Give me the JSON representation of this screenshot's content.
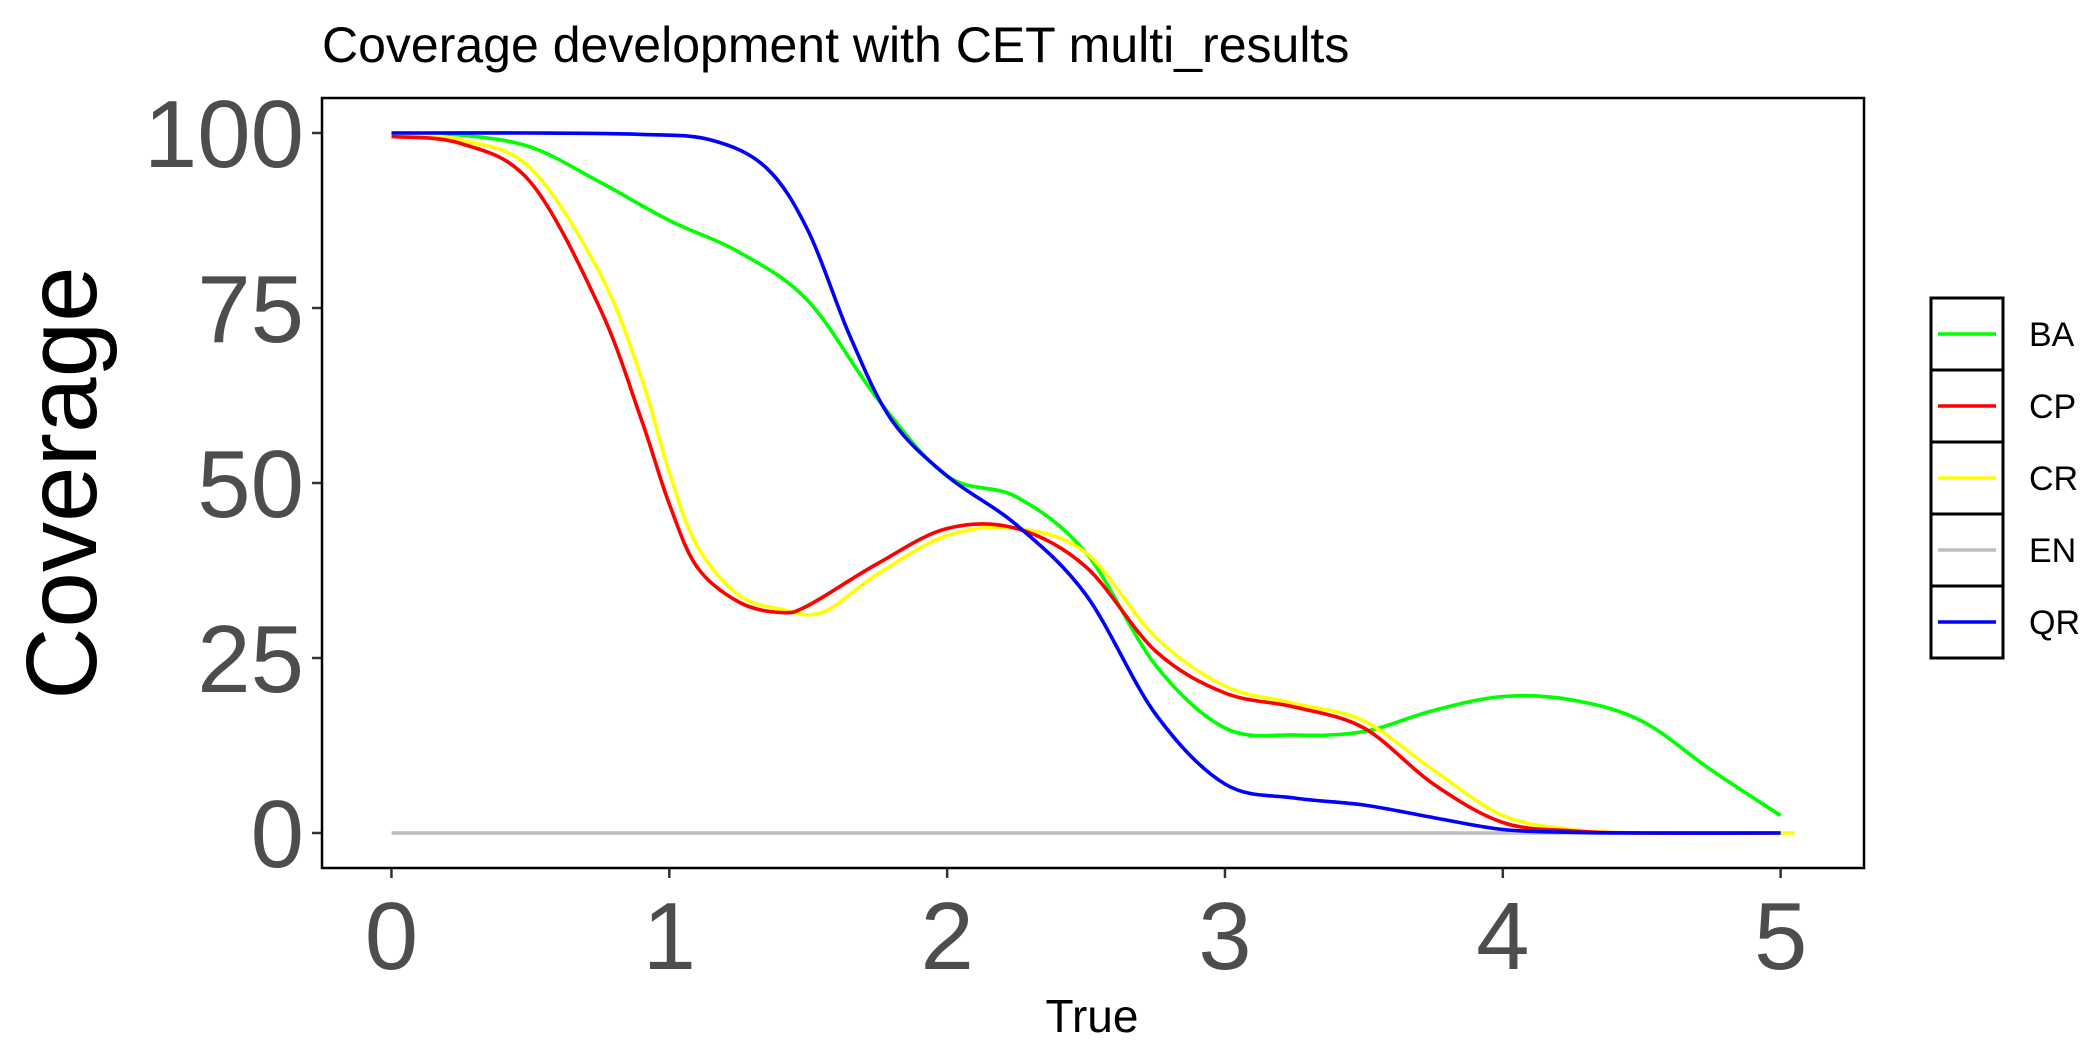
{
  "chart_data": {
    "type": "line",
    "title": "Coverage development with CET multi_results",
    "xlabel": "True",
    "ylabel": "Coverage",
    "xlim": [
      -0.25,
      5.3
    ],
    "ylim": [
      -5,
      105
    ],
    "x_ticks": [
      0,
      1,
      2,
      3,
      4,
      5
    ],
    "x_tick_labels": [
      "0",
      "1",
      "2",
      "3",
      "4",
      "5"
    ],
    "y_ticks": [
      0,
      25,
      50,
      75,
      100
    ],
    "y_tick_labels": [
      "0",
      "25",
      "50",
      "75",
      "100"
    ],
    "grid": false,
    "legend_position": "right",
    "series": [
      {
        "name": "BA",
        "color": "#00ff00",
        "x": [
          0,
          0.25,
          0.5,
          0.75,
          1.0,
          1.25,
          1.5,
          1.75,
          2.0,
          2.25,
          2.5,
          2.75,
          3.0,
          3.25,
          3.5,
          3.75,
          4.0,
          4.25,
          4.5,
          4.75,
          5.0
        ],
        "y": [
          100,
          99.7,
          98,
          93,
          87.5,
          83,
          76,
          62,
          51,
          48,
          40,
          24,
          15,
          14,
          14.5,
          17.5,
          19.5,
          19,
          16,
          9,
          2.5
        ]
      },
      {
        "name": "CP",
        "color": "#ff0000",
        "x": [
          0,
          0.25,
          0.5,
          0.75,
          0.9,
          1.0,
          1.1,
          1.25,
          1.4,
          1.5,
          1.75,
          2.0,
          2.25,
          2.5,
          2.75,
          3.0,
          3.25,
          3.5,
          3.75,
          4.0,
          4.25,
          4.5,
          5.0
        ],
        "y": [
          99.5,
          98.5,
          93,
          75,
          59,
          47,
          38,
          33,
          31.5,
          32.5,
          38.5,
          43.5,
          43.5,
          38,
          26,
          20,
          18,
          15,
          7,
          1.5,
          0.3,
          0,
          0
        ]
      },
      {
        "name": "CR",
        "color": "#ffff00",
        "x": [
          0,
          0.25,
          0.5,
          0.75,
          0.9,
          1.0,
          1.1,
          1.25,
          1.4,
          1.55,
          1.75,
          2.0,
          2.25,
          2.5,
          2.75,
          3.0,
          3.25,
          3.5,
          3.75,
          4.0,
          4.25,
          4.5,
          5.05
        ],
        "y": [
          100,
          99,
          95,
          80,
          65,
          51.5,
          41,
          34,
          32,
          31.5,
          37,
          42.5,
          43.5,
          40,
          28,
          21,
          18.5,
          16,
          9,
          2.5,
          0.5,
          0,
          0
        ]
      },
      {
        "name": "EN",
        "color": "#bebebe",
        "x": [
          0,
          5
        ],
        "y": [
          0,
          0
        ]
      },
      {
        "name": "QR",
        "color": "#0000ff",
        "x": [
          0,
          0.5,
          0.9,
          1.15,
          1.35,
          1.5,
          1.65,
          1.8,
          2.0,
          2.25,
          2.5,
          2.75,
          3.0,
          3.25,
          3.5,
          3.75,
          4.0,
          4.25,
          4.5,
          5.0
        ],
        "y": [
          100,
          100,
          99.8,
          99,
          95,
          86,
          71,
          59,
          51,
          44,
          34,
          17,
          7,
          5,
          4,
          2.2,
          0.5,
          0.1,
          0,
          0
        ]
      }
    ]
  }
}
